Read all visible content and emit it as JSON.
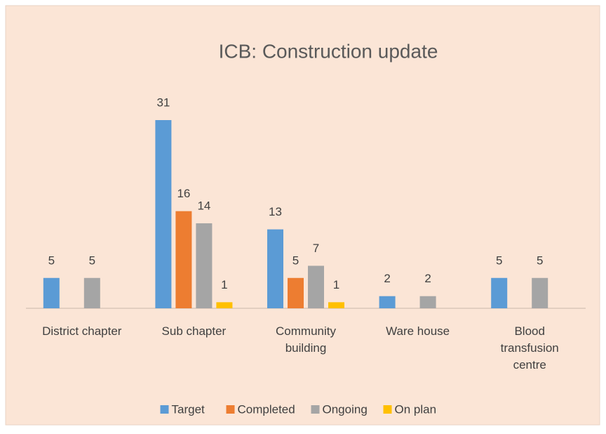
{
  "chart_data": {
    "type": "bar",
    "title": "ICB: Construction update",
    "categories": [
      "District chapter",
      "Sub chapter",
      "Community building",
      "Ware house",
      "Blood transfusion centre"
    ],
    "series": [
      {
        "name": "Target",
        "color": "#5b9bd5",
        "values": [
          5,
          31,
          13,
          2,
          5
        ]
      },
      {
        "name": "Completed",
        "color": "#ed7d31",
        "values": [
          null,
          16,
          5,
          null,
          null
        ]
      },
      {
        "name": "Ongoing",
        "color": "#a5a5a5",
        "values": [
          5,
          14,
          7,
          2,
          5
        ]
      },
      {
        "name": "On plan",
        "color": "#ffc000",
        "values": [
          null,
          1,
          1,
          null,
          null
        ]
      }
    ],
    "legend": "bottom"
  }
}
